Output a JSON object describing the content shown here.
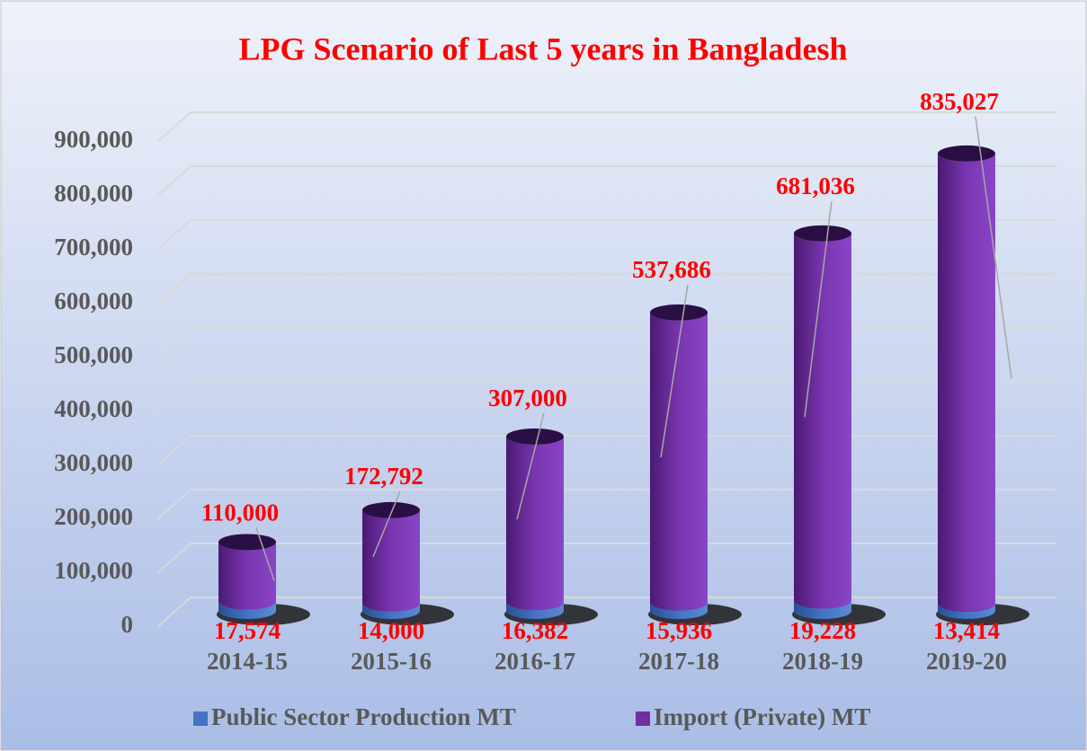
{
  "chart_data": {
    "type": "bar",
    "stacked": true,
    "title": "LPG Scenario of Last 5 years in Bangladesh",
    "categories": [
      "2014-15",
      "2015-16",
      "2016-17",
      "2017-18",
      "2018-19",
      "2019-20"
    ],
    "series": [
      {
        "name": "Public Sector Production MT",
        "color": "#4472c4",
        "values": [
          17574,
          14000,
          16382,
          15936,
          19228,
          13414
        ],
        "value_labels": [
          "17,574",
          "14,000",
          "16,382",
          "15,936",
          "19,228",
          "13,414"
        ]
      },
      {
        "name": "Import (Private) MT",
        "color": "#7030a0",
        "values": [
          110000,
          172792,
          307000,
          537686,
          681036,
          835027
        ],
        "value_labels": [
          "110,000",
          "172,792",
          "307,000",
          "537,686",
          "681,036",
          "835,027"
        ]
      }
    ],
    "ylim": [
      0,
      900000
    ],
    "yticks": [
      0,
      {
        "value": 100000,
        "label": "100,000"
      },
      {
        "value": 200000,
        "label": "200,000"
      },
      {
        "value": 300000,
        "label": "300,000"
      },
      {
        "value": 400000,
        "label": "400,000"
      },
      {
        "value": 500000,
        "label": "500,000"
      },
      {
        "value": 600000,
        "label": "600,000"
      },
      {
        "value": 700000,
        "label": "700,000"
      },
      {
        "value": 800000,
        "label": "800,000"
      },
      {
        "value": 900000,
        "label": "900,000"
      }
    ],
    "grid": true,
    "legend": "bottom"
  }
}
